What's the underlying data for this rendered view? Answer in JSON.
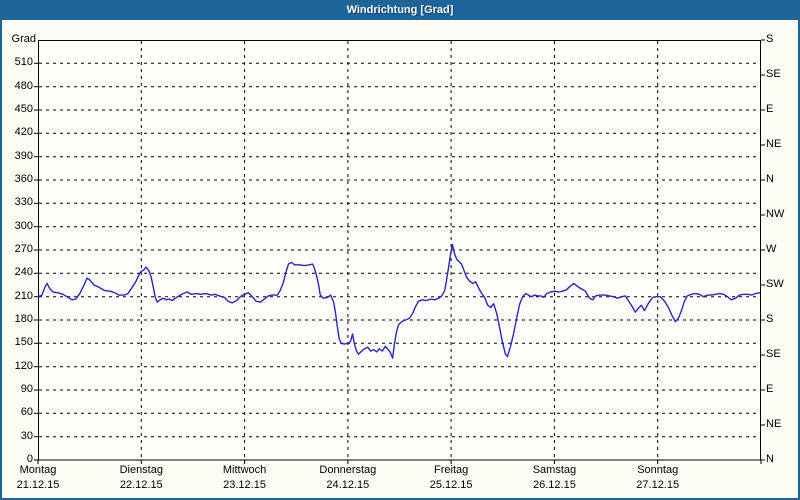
{
  "window": {
    "title": "Windrichtung [Grad]"
  },
  "colors": {
    "titlebar_bg": "#1d6596",
    "titlebar_text": "#ffffff",
    "frame": "#1d6596",
    "background": "#fdfdf6",
    "plot_bg": "#fffffb",
    "plot_border": "#000000",
    "grid": "#000000",
    "line": "#2626c9",
    "label_text": "#000000"
  },
  "chart_data": {
    "type": "line",
    "title": "Windrichtung [Grad]",
    "grid": {
      "style": "dashed",
      "horizontal_step_grad": 30,
      "vertical_every_hours": 24
    },
    "legend": "none",
    "y_axis_left": {
      "label": "Grad",
      "min": 0,
      "max": 540,
      "tick_step": 30,
      "tick_labels": [
        0,
        30,
        60,
        90,
        120,
        150,
        180,
        210,
        240,
        270,
        300,
        330,
        360,
        390,
        420,
        450,
        480,
        510
      ]
    },
    "y_axis_right": {
      "unit": "compass",
      "ticks": [
        {
          "value": 0,
          "label": "N"
        },
        {
          "value": 45,
          "label": "NE"
        },
        {
          "value": 90,
          "label": "E"
        },
        {
          "value": 135,
          "label": "SE"
        },
        {
          "value": 180,
          "label": "S"
        },
        {
          "value": 225,
          "label": "SW"
        },
        {
          "value": 270,
          "label": "W"
        },
        {
          "value": 315,
          "label": "NW"
        },
        {
          "value": 360,
          "label": "N"
        },
        {
          "value": 405,
          "label": "NE"
        },
        {
          "value": 450,
          "label": "E"
        },
        {
          "value": 495,
          "label": "SE"
        },
        {
          "value": 540,
          "label": "S"
        }
      ]
    },
    "x_axis": {
      "unit": "hours",
      "min": 0,
      "max": 168,
      "day_ticks": [
        {
          "hour": 0,
          "name": "Montag",
          "date": "21.12.15"
        },
        {
          "hour": 24,
          "name": "Dienstag",
          "date": "22.12.15"
        },
        {
          "hour": 48,
          "name": "Mittwoch",
          "date": "23.12.15"
        },
        {
          "hour": 72,
          "name": "Donnerstag",
          "date": "24.12.15"
        },
        {
          "hour": 96,
          "name": "Freitag",
          "date": "25.12.15"
        },
        {
          "hour": 120,
          "name": "Samstag",
          "date": "26.12.15"
        },
        {
          "hour": 144,
          "name": "Sonntag",
          "date": "27.12.15"
        }
      ]
    },
    "series": [
      {
        "name": "Windrichtung",
        "color": "#2626c9",
        "points": [
          [
            0,
            210
          ],
          [
            0.9,
            212
          ],
          [
            1.6,
            222
          ],
          [
            2.1,
            227
          ],
          [
            2.8,
            220
          ],
          [
            3.5,
            216
          ],
          [
            4.7,
            215
          ],
          [
            5.8,
            213
          ],
          [
            7,
            209
          ],
          [
            7.9,
            206
          ],
          [
            8.8,
            207
          ],
          [
            9.8,
            215
          ],
          [
            10.7,
            225
          ],
          [
            11.4,
            234
          ],
          [
            12.1,
            231
          ],
          [
            13,
            225
          ],
          [
            14.2,
            222
          ],
          [
            15.4,
            218
          ],
          [
            16.8,
            217
          ],
          [
            17.9,
            215
          ],
          [
            18.8,
            212
          ],
          [
            20,
            212
          ],
          [
            20.9,
            214
          ],
          [
            21.9,
            222
          ],
          [
            22.8,
            230
          ],
          [
            23.7,
            241
          ],
          [
            24.7,
            245
          ],
          [
            25.1,
            248
          ],
          [
            25.8,
            243
          ],
          [
            26.3,
            235
          ],
          [
            26.8,
            222
          ],
          [
            27.2,
            210
          ],
          [
            27.7,
            203
          ],
          [
            28.4,
            206
          ],
          [
            29.1,
            208
          ],
          [
            29.8,
            206
          ],
          [
            30.5,
            207
          ],
          [
            31.2,
            205
          ],
          [
            31.9,
            208
          ],
          [
            32.8,
            211
          ],
          [
            33.7,
            214
          ],
          [
            34.7,
            216
          ],
          [
            35.6,
            213
          ],
          [
            36.8,
            214
          ],
          [
            37.9,
            213
          ],
          [
            39.1,
            214
          ],
          [
            40.3,
            212
          ],
          [
            41.2,
            213
          ],
          [
            42.1,
            211
          ],
          [
            43.3,
            209
          ],
          [
            44.2,
            204
          ],
          [
            45.1,
            202
          ],
          [
            46.1,
            205
          ],
          [
            47,
            210
          ],
          [
            47.9,
            213
          ],
          [
            48.9,
            215
          ],
          [
            49.8,
            210
          ],
          [
            50.7,
            204
          ],
          [
            51.7,
            203
          ],
          [
            52.6,
            207
          ],
          [
            53.5,
            211
          ],
          [
            54.4,
            212
          ],
          [
            55.6,
            212
          ],
          [
            56.3,
            218
          ],
          [
            57,
            228
          ],
          [
            57.7,
            243
          ],
          [
            58.2,
            252
          ],
          [
            58.9,
            254
          ],
          [
            59.6,
            251
          ],
          [
            60.7,
            251
          ],
          [
            61.9,
            250
          ],
          [
            63.1,
            251
          ],
          [
            63.8,
            252
          ],
          [
            64.2,
            247
          ],
          [
            64.7,
            238
          ],
          [
            65.2,
            225
          ],
          [
            65.6,
            212
          ],
          [
            66.3,
            208
          ],
          [
            67.3,
            209
          ],
          [
            68,
            212
          ],
          [
            68.7,
            203
          ],
          [
            69.1,
            190
          ],
          [
            69.6,
            170
          ],
          [
            70,
            155
          ],
          [
            70.5,
            150
          ],
          [
            71.2,
            149
          ],
          [
            71.9,
            150
          ],
          [
            72.6,
            152
          ],
          [
            73.1,
            162
          ],
          [
            73.5,
            150
          ],
          [
            74,
            140
          ],
          [
            74.5,
            136
          ],
          [
            75.2,
            140
          ],
          [
            75.9,
            143
          ],
          [
            76.6,
            145
          ],
          [
            77.3,
            140
          ],
          [
            78,
            142
          ],
          [
            78.7,
            139
          ],
          [
            79.3,
            143
          ],
          [
            80,
            140
          ],
          [
            80.7,
            146
          ],
          [
            81.4,
            142
          ],
          [
            81.9,
            138
          ],
          [
            82.4,
            131
          ],
          [
            82.8,
            148
          ],
          [
            83.3,
            165
          ],
          [
            83.8,
            174
          ],
          [
            84.5,
            178
          ],
          [
            85.4,
            180
          ],
          [
            86.3,
            182
          ],
          [
            87,
            188
          ],
          [
            87.7,
            197
          ],
          [
            88.4,
            204
          ],
          [
            89.3,
            206
          ],
          [
            90.3,
            205
          ],
          [
            91.2,
            207
          ],
          [
            92.1,
            206
          ],
          [
            93.1,
            208
          ],
          [
            93.8,
            211
          ],
          [
            94.5,
            218
          ],
          [
            94.9,
            230
          ],
          [
            95.4,
            248
          ],
          [
            95.9,
            266
          ],
          [
            96.3,
            277
          ],
          [
            96.8,
            265
          ],
          [
            97.3,
            258
          ],
          [
            98,
            254
          ],
          [
            98.4,
            252
          ],
          [
            99.1,
            242
          ],
          [
            99.6,
            235
          ],
          [
            100.3,
            230
          ],
          [
            101,
            227
          ],
          [
            101.7,
            229
          ],
          [
            102.4,
            221
          ],
          [
            103.1,
            214
          ],
          [
            103.8,
            209
          ],
          [
            104.5,
            199
          ],
          [
            105.2,
            196
          ],
          [
            105.9,
            201
          ],
          [
            106.6,
            188
          ],
          [
            107.2,
            172
          ],
          [
            107.9,
            152
          ],
          [
            108.6,
            136
          ],
          [
            109.1,
            133
          ],
          [
            109.8,
            146
          ],
          [
            110.5,
            162
          ],
          [
            111.2,
            182
          ],
          [
            111.9,
            200
          ],
          [
            112.6,
            210
          ],
          [
            113.3,
            214
          ],
          [
            114,
            212
          ],
          [
            114.7,
            210
          ],
          [
            115.4,
            212
          ],
          [
            116.1,
            211
          ],
          [
            116.8,
            211
          ],
          [
            117.5,
            209
          ],
          [
            118.2,
            214
          ],
          [
            119.1,
            216
          ],
          [
            120.1,
            217
          ],
          [
            121,
            216
          ],
          [
            121.9,
            217
          ],
          [
            122.8,
            219
          ],
          [
            123.8,
            224
          ],
          [
            124.5,
            227
          ],
          [
            125.4,
            223
          ],
          [
            126.3,
            220
          ],
          [
            127.2,
            217
          ],
          [
            128.2,
            208
          ],
          [
            128.9,
            206
          ],
          [
            129.6,
            211
          ],
          [
            130.5,
            212
          ],
          [
            131.7,
            212
          ],
          [
            132.8,
            211
          ],
          [
            133.7,
            210
          ],
          [
            134.7,
            208
          ],
          [
            135.6,
            210
          ],
          [
            136.5,
            211
          ],
          [
            137.4,
            203
          ],
          [
            138.1,
            197
          ],
          [
            138.8,
            190
          ],
          [
            139.5,
            195
          ],
          [
            140.2,
            199
          ],
          [
            140.9,
            192
          ],
          [
            141.8,
            201
          ],
          [
            142.8,
            209
          ],
          [
            143.7,
            210
          ],
          [
            144.6,
            210
          ],
          [
            145.6,
            204
          ],
          [
            146.5,
            196
          ],
          [
            147.4,
            185
          ],
          [
            148.1,
            178
          ],
          [
            148.8,
            182
          ],
          [
            149.5,
            192
          ],
          [
            150.2,
            204
          ],
          [
            150.9,
            211
          ],
          [
            151.8,
            213
          ],
          [
            152.8,
            214
          ],
          [
            153.7,
            213
          ],
          [
            154.6,
            210
          ],
          [
            155.6,
            212
          ],
          [
            156.5,
            212
          ],
          [
            157.4,
            213
          ],
          [
            158.4,
            214
          ],
          [
            159.3,
            213
          ],
          [
            160.2,
            210
          ],
          [
            161.1,
            206
          ],
          [
            162.1,
            208
          ],
          [
            163,
            212
          ],
          [
            163.9,
            213
          ],
          [
            164.9,
            213
          ],
          [
            165.8,
            212
          ],
          [
            166.7,
            214
          ],
          [
            167.7,
            215
          ]
        ]
      }
    ]
  }
}
